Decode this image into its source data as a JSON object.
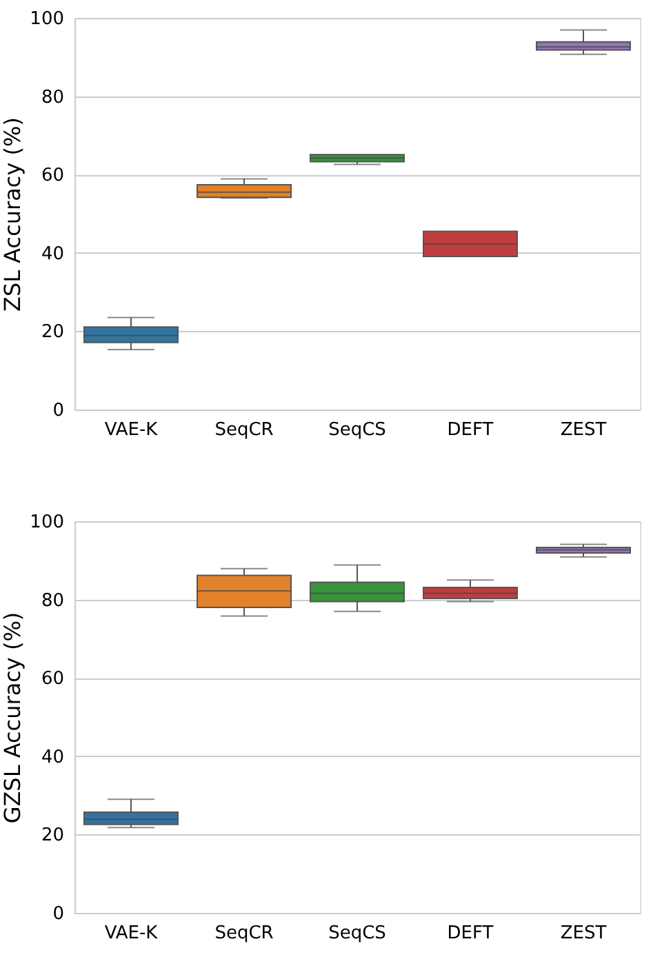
{
  "chart_data": [
    {
      "type": "box",
      "ylabel": "ZSL Accuracy (%)",
      "categories": [
        "VAE-K",
        "SeqCR",
        "SeqCS",
        "DEFT",
        "ZEST"
      ],
      "colors": [
        "#3274a1",
        "#e1812c",
        "#3a923a",
        "#c03d3e",
        "#9372b2"
      ],
      "ylim": [
        0,
        100
      ],
      "yticks": [
        0,
        20,
        40,
        60,
        80,
        100
      ],
      "grid": "y",
      "boxes": [
        {
          "low": 15.3,
          "q1": 17.1,
          "median": 18.9,
          "q3": 21.1,
          "high": 23.5
        },
        {
          "low": 54.0,
          "q1": 54.2,
          "median": 55.5,
          "q3": 57.4,
          "high": 58.9
        },
        {
          "low": 62.6,
          "q1": 63.3,
          "median": 64.2,
          "q3": 65.1,
          "high": 65.1
        },
        {
          "low": 39.1,
          "q1": 39.1,
          "median": 42.3,
          "q3": 45.5,
          "high": 45.5
        },
        {
          "low": 90.7,
          "q1": 91.8,
          "median": 92.6,
          "q3": 93.9,
          "high": 96.9
        }
      ]
    },
    {
      "type": "box",
      "ylabel": "GZSL Accuracy (%)",
      "categories": [
        "VAE-K",
        "SeqCR",
        "SeqCS",
        "DEFT",
        "ZEST"
      ],
      "colors": [
        "#3274a1",
        "#e1812c",
        "#3a923a",
        "#c03d3e",
        "#9372b2"
      ],
      "ylim": [
        0,
        100
      ],
      "yticks": [
        0,
        20,
        40,
        60,
        80,
        100
      ],
      "grid": "y",
      "boxes": [
        {
          "low": 21.8,
          "q1": 22.6,
          "median": 23.9,
          "q3": 25.7,
          "high": 29.0
        },
        {
          "low": 75.8,
          "q1": 78.0,
          "median": 82.2,
          "q3": 86.2,
          "high": 87.9
        },
        {
          "low": 77.0,
          "q1": 79.5,
          "median": 81.6,
          "q3": 84.4,
          "high": 88.8
        },
        {
          "low": 79.5,
          "q1": 80.3,
          "median": 81.6,
          "q3": 83.1,
          "high": 85.0
        },
        {
          "low": 90.9,
          "q1": 91.9,
          "median": 92.7,
          "q3": 93.3,
          "high": 94.1
        }
      ]
    }
  ]
}
